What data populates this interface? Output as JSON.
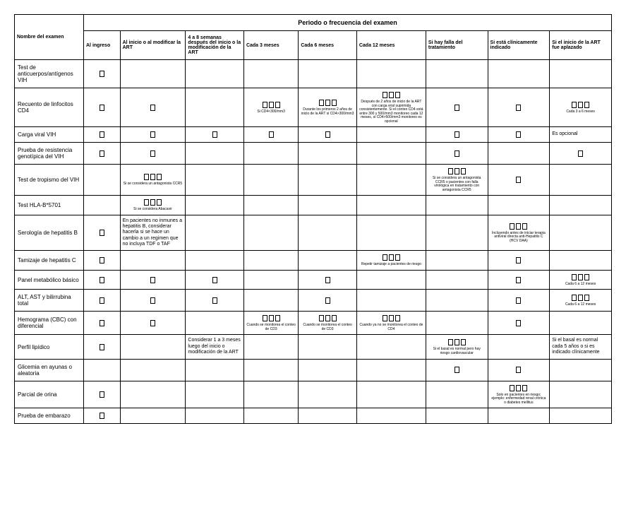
{
  "header": {
    "nameCol": "Nombre del examen",
    "periodHeader": "Periodo o frecuencia del examen",
    "cols": [
      "Al ingreso",
      "Al inicio o al modificar la ART",
      "4 a 8 semanas después del inicio o la modificación de la ART",
      "Cada 3 meses",
      "Cada 6 meses",
      "Cada 12 meses",
      "Si hay falla del tratamiento",
      "Si está clínicamente indicado",
      "Si el inicio de la ART fue aplazado"
    ]
  },
  "rows": [
    {
      "name": "Test de anticuerpos/antígenos VIH",
      "cells": [
        {
          "b": 1
        },
        {},
        {},
        {},
        {},
        {},
        {},
        {},
        {}
      ]
    },
    {
      "name": "Recuento de linfocitos CD4",
      "cells": [
        {
          "b": 1
        },
        {
          "b": 1
        },
        {},
        {
          "b": 3,
          "note": "Si CD4<300/mm3"
        },
        {
          "b": 3,
          "note": "Durante los primeros 2 años de inicio de la ART si CD4>300/mm3"
        },
        {
          "b": 3,
          "note": "Después de 2 años de inicio de la ART con carga viral suprimida consistentemente. Si el conteo CD4 está entre 300 y 500/mm3 monitoreo cada 12 meses, si CD4>500/mm3 monitoreo es opcional"
        },
        {
          "b": 1
        },
        {
          "b": 1
        },
        {
          "b": 3,
          "note": "Cada 3 a 6 meses"
        }
      ]
    },
    {
      "name": "Carga viral VIH",
      "cells": [
        {
          "b": 1
        },
        {
          "b": 1
        },
        {
          "b": 1
        },
        {
          "b": 1
        },
        {
          "b": 1
        },
        {},
        {
          "b": 1
        },
        {
          "b": 1
        },
        {
          "text": "Es opcional"
        }
      ]
    },
    {
      "name": "Prueba de resistencia genotípica del VIH",
      "cells": [
        {
          "b": 1
        },
        {
          "b": 1
        },
        {},
        {},
        {},
        {},
        {
          "b": 1
        },
        {},
        {
          "b": 1
        }
      ]
    },
    {
      "name": "Test de tropismo del VIH",
      "cells": [
        {},
        {
          "b": 3,
          "note": "Si se considera un antagonista CCR5"
        },
        {},
        {},
        {},
        {},
        {
          "b": 3,
          "note": "Si se considera un antagonista CCR5 o pacientes con falla virológica en tratamiento con antagonista CCR5"
        },
        {
          "b": 1
        },
        {}
      ]
    },
    {
      "name": "Test HLA-B*5701",
      "cells": [
        {},
        {
          "b": 3,
          "note": "Si se considera Abacavir"
        },
        {},
        {},
        {},
        {},
        {},
        {},
        {}
      ]
    },
    {
      "name": "Serología de hepatitis B",
      "cells": [
        {
          "b": 1
        },
        {
          "text": "En pacientes no inmunes a hepatitis B, considerar hacerla si se hace un cambio a un regimen que no incluya TDF o TAF"
        },
        {},
        {},
        {},
        {},
        {},
        {
          "b": 3,
          "note": "Incluyendo antes de iniciar terapia antiviral directa anti-Hepatitis C (HCV DAA)"
        },
        {}
      ]
    },
    {
      "name": "Tamizaje de hepatitis C",
      "cells": [
        {
          "b": 1
        },
        {},
        {},
        {},
        {},
        {
          "b": 3,
          "note": "Repetir tamizaje a pacientes de riesgo"
        },
        {},
        {
          "b": 1
        },
        {}
      ]
    },
    {
      "name": "Panel metabólico básico",
      "cells": [
        {
          "b": 1
        },
        {
          "b": 1
        },
        {
          "b": 1
        },
        {},
        {
          "b": 1
        },
        {},
        {},
        {
          "b": 1
        },
        {
          "b": 3,
          "note": "Cada 6 a 12 meses"
        }
      ]
    },
    {
      "name": "ALT, AST y bilirrubina total",
      "cells": [
        {
          "b": 1
        },
        {
          "b": 1
        },
        {
          "b": 1
        },
        {},
        {
          "b": 1
        },
        {},
        {},
        {
          "b": 1
        },
        {
          "b": 3,
          "note": "Cada 6 a 12 meses"
        }
      ]
    },
    {
      "name": "Hemograma (CBC) con diferencial",
      "cells": [
        {
          "b": 1
        },
        {
          "b": 1
        },
        {},
        {
          "b": 3,
          "note": "Cuando se monitorea el conteo de CD3"
        },
        {
          "b": 3,
          "note": "Cuando se monitorea el conteo de CD3"
        },
        {
          "b": 3,
          "note": "Cuando ya no se monitorea el conteo de CD4"
        },
        {},
        {
          "b": 1
        },
        {}
      ]
    },
    {
      "name": "Perfil lipídico",
      "cells": [
        {
          "b": 1
        },
        {},
        {
          "text": "Considerar 1 a 3 meses luego del inicio o modificación de la ART"
        },
        {},
        {},
        {},
        {
          "b": 3,
          "note": "Si el basal es normal pero hay riesgo cardiovascular"
        },
        {},
        {
          "text": "Si el basal es normal cada 5 años o si es indicado clínicamente"
        }
      ]
    },
    {
      "name": "Glicemia en ayunas o aleatoria",
      "cells": [
        {},
        {},
        {},
        {},
        {},
        {},
        {
          "b": 1
        },
        {
          "b": 1
        },
        {}
      ]
    },
    {
      "name": "Parcial de orina",
      "cells": [
        {
          "b": 1
        },
        {},
        {},
        {},
        {},
        {},
        {},
        {
          "b": 3,
          "note": "Solo en pacientes en riesgo; ejemplo: enfermedad renal crónica o diabetes mellitus"
        },
        {}
      ]
    },
    {
      "name": "Prueba de embarazo",
      "cells": [
        {
          "b": 1
        },
        {},
        {},
        {},
        {},
        {},
        {},
        {},
        {}
      ]
    }
  ]
}
